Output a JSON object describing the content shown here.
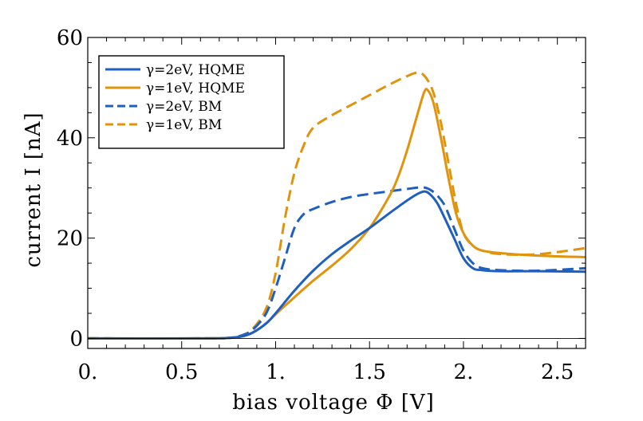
{
  "chart_data": {
    "type": "line",
    "title": "",
    "xlabel": "bias voltage Φ [V]",
    "ylabel": "current I [nA]",
    "xlim": [
      0,
      2.65
    ],
    "ylim": [
      -2,
      60
    ],
    "xticks": [
      0,
      0.5,
      1,
      1.5,
      2,
      2.5
    ],
    "xtick_labels": [
      "0.",
      "0.5",
      "1.",
      "1.5",
      "2.",
      "2.5"
    ],
    "yticks": [
      0,
      20,
      40,
      60
    ],
    "ytick_labels": [
      "0",
      "20",
      "40",
      "60"
    ],
    "grid": false,
    "legend_position": "top-left",
    "colors": {
      "blue": "#1f5fc0",
      "orange": "#e0940e"
    },
    "series": [
      {
        "name": "γ=2eV, HQME",
        "color": "#1f5fc0",
        "dash": "solid",
        "x": [
          0,
          0.6,
          0.75,
          0.82,
          0.88,
          0.95,
          1.0,
          1.1,
          1.2,
          1.3,
          1.4,
          1.5,
          1.6,
          1.7,
          1.75,
          1.79,
          1.82,
          1.86,
          1.9,
          1.95,
          2.0,
          2.05,
          2.1,
          2.2,
          2.4,
          2.65
        ],
        "y": [
          0,
          0,
          0.1,
          0.4,
          1.2,
          3,
          5,
          9.5,
          13.5,
          16.8,
          19.5,
          22,
          24.8,
          27.5,
          28.7,
          29.3,
          28.8,
          27,
          24,
          20,
          16,
          14,
          13.6,
          13.4,
          13.4,
          13.3
        ]
      },
      {
        "name": "γ=1eV, HQME",
        "color": "#e0940e",
        "dash": "solid",
        "x": [
          0,
          0.6,
          0.75,
          0.82,
          0.88,
          0.95,
          1.0,
          1.1,
          1.2,
          1.3,
          1.4,
          1.5,
          1.6,
          1.65,
          1.7,
          1.75,
          1.79,
          1.81,
          1.84,
          1.88,
          1.92,
          1.96,
          2.0,
          2.05,
          2.1,
          2.2,
          2.4,
          2.65
        ],
        "y": [
          0,
          0,
          0.1,
          0.4,
          1.2,
          3,
          4.8,
          8.2,
          11.5,
          14.5,
          17.8,
          22,
          28,
          32,
          37.5,
          44,
          49,
          49.5,
          47,
          40,
          32,
          25,
          21,
          18.5,
          17.5,
          17,
          16.5,
          16.2
        ]
      },
      {
        "name": "γ=2eV, BM",
        "color": "#1f5fc0",
        "dash": "dashed",
        "x": [
          0,
          0.6,
          0.75,
          0.82,
          0.88,
          0.95,
          1.0,
          1.05,
          1.1,
          1.15,
          1.2,
          1.3,
          1.4,
          1.5,
          1.6,
          1.7,
          1.78,
          1.82,
          1.86,
          1.9,
          1.95,
          2.0,
          2.05,
          2.1,
          2.2,
          2.4,
          2.65
        ],
        "y": [
          0,
          0,
          0.1,
          0.6,
          1.8,
          5,
          10,
          16,
          22,
          24.8,
          25.8,
          27.2,
          28.2,
          28.8,
          29.3,
          29.8,
          30.1,
          29.7,
          28.5,
          26.5,
          22,
          17.5,
          15,
          14,
          13.6,
          13.5,
          14
        ]
      },
      {
        "name": "γ=1eV, BM",
        "color": "#e0940e",
        "dash": "dashed",
        "x": [
          0,
          0.6,
          0.75,
          0.82,
          0.88,
          0.95,
          1.0,
          1.05,
          1.1,
          1.15,
          1.2,
          1.3,
          1.4,
          1.5,
          1.6,
          1.7,
          1.76,
          1.8,
          1.84,
          1.88,
          1.92,
          1.96,
          2.0,
          2.05,
          2.1,
          2.2,
          2.4,
          2.65
        ],
        "y": [
          0,
          0,
          0.1,
          0.6,
          2,
          6,
          13,
          24,
          33,
          38.5,
          42,
          44.5,
          46.5,
          48.5,
          50.5,
          52.3,
          53,
          52,
          49,
          43,
          35,
          27,
          21,
          18.5,
          17.5,
          16.8,
          16.8,
          18
        ]
      }
    ]
  }
}
